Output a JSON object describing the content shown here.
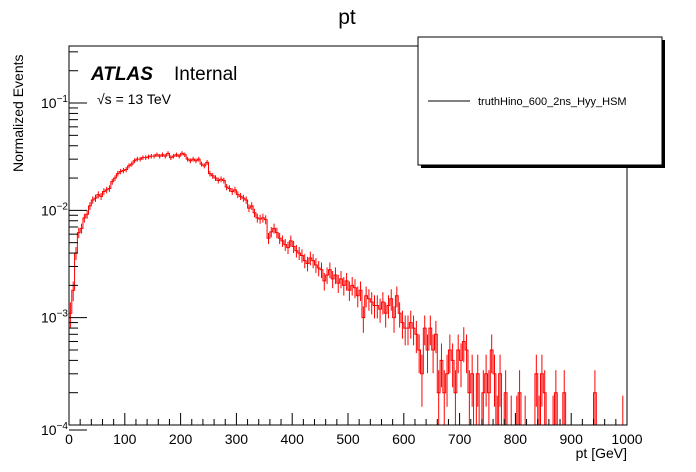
{
  "chart_data": {
    "type": "histogram",
    "title": "pt",
    "xlabel": "pt [GeV]",
    "ylabel": "Normalized Events",
    "xlim": [
      0,
      1000
    ],
    "ylim": [
      0.0001,
      0.34
    ],
    "yscale": "log",
    "bin_width": 5,
    "xticks": [
      "0",
      "100",
      "200",
      "300",
      "400",
      "500",
      "600",
      "700",
      "800",
      "900",
      "1000"
    ],
    "yticks": [
      {
        "base": "10",
        "exp": "−4"
      },
      {
        "base": "10",
        "exp": "−3"
      },
      {
        "base": "10",
        "exp": "−2"
      },
      {
        "base": "10",
        "exp": "−1"
      }
    ],
    "labels": {
      "experiment": "ATLAS",
      "status": "Internal",
      "energy": "√s = 13 TeV"
    },
    "legend": {
      "position": "top-right",
      "entries": [
        {
          "name": "truthHino_600_2ns_Hyy_HSM",
          "color": "#000000"
        }
      ]
    },
    "series_color": "#ff0000",
    "values": [
      0.0011,
      0.0018,
      0.004,
      0.0062,
      0.0068,
      0.0085,
      0.0092,
      0.011,
      0.0125,
      0.013,
      0.014,
      0.0135,
      0.015,
      0.0155,
      0.016,
      0.0185,
      0.02,
      0.022,
      0.023,
      0.0235,
      0.024,
      0.026,
      0.027,
      0.029,
      0.03,
      0.03,
      0.031,
      0.031,
      0.0315,
      0.032,
      0.032,
      0.033,
      0.032,
      0.033,
      0.032,
      0.034,
      0.031,
      0.032,
      0.033,
      0.032,
      0.034,
      0.033,
      0.03,
      0.029,
      0.03,
      0.029,
      0.03,
      0.027,
      0.026,
      0.028,
      0.022,
      0.021,
      0.02,
      0.019,
      0.0195,
      0.019,
      0.0165,
      0.016,
      0.015,
      0.0155,
      0.014,
      0.0135,
      0.013,
      0.0125,
      0.0105,
      0.011,
      0.0095,
      0.0085,
      0.0083,
      0.0085,
      0.0082,
      0.0055,
      0.0063,
      0.0068,
      0.0062,
      0.0055,
      0.0052,
      0.0048,
      0.0045,
      0.0052,
      0.0046,
      0.0042,
      0.004,
      0.0038,
      0.0034,
      0.0032,
      0.0036,
      0.0034,
      0.0031,
      0.0029,
      0.0028,
      0.0022,
      0.0025,
      0.0028,
      0.0023,
      0.0025,
      0.0021,
      0.0023,
      0.002,
      0.0022,
      0.0018,
      0.002,
      0.0019,
      0.0016,
      0.0018,
      0.001,
      0.0016,
      0.0015,
      0.0014,
      0.0013,
      0.0013,
      0.0012,
      0.0014,
      0.0011,
      0.0013,
      0.0015,
      0.001,
      0.0016,
      0.0011,
      0.0009,
      0.0008,
      0.0008,
      0.0009,
      0.0008,
      0.0007,
      0.0005,
      0.0003,
      0.0008,
      0.0005,
      0.0008,
      0.0005,
      0.0007,
      0.0002,
      0.0004,
      0.0002,
      0.0003,
      0.0005,
      0.0004,
      0.0002,
      0.0005,
      0.0004,
      0.0006,
      0.0005,
      0.0002,
      0.0003,
      0,
      0.0003,
      0,
      0.0002,
      0.0003,
      0.0002,
      0.0005,
      0.0003,
      0.0001,
      0.0003,
      0,
      0.0002,
      0,
      0.0001,
      0,
      0.0001,
      0.0002,
      0,
      0.0001,
      0,
      0,
      0,
      0.0003,
      0.0001,
      0.0003,
      0.0002,
      0,
      0,
      0.0001,
      0.0002,
      0,
      0,
      0.0002,
      0,
      0,
      0,
      0,
      0,
      0,
      0,
      0,
      0,
      0,
      0.0002,
      0,
      0,
      0,
      0,
      0,
      0,
      0,
      0,
      0,
      0.0001,
      0
    ]
  }
}
